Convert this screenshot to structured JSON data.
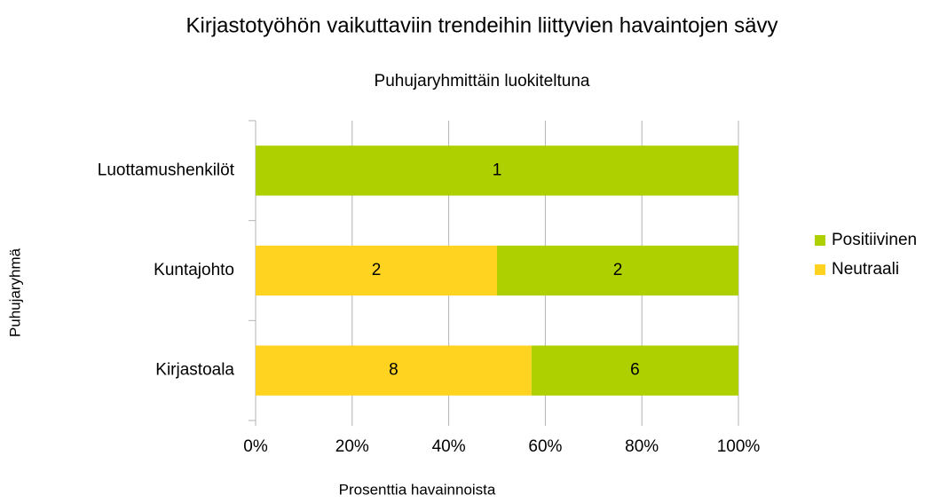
{
  "chart_data": {
    "type": "bar",
    "orientation": "horizontal",
    "stacking": "percent",
    "title": "Kirjastotyöhön vaikuttaviin trendeihin liittyvien havaintojen sävy",
    "subtitle": "Puhujaryhmittäin luokiteltuna",
    "x_label": "Prosenttia havainnoista",
    "y_label": "Puhujaryhmä",
    "categories": [
      "Kirjastoala",
      "Kuntajohto",
      "Luottamushenkilöt"
    ],
    "series": [
      {
        "name": "Neutraali",
        "color": "#ffd320",
        "values": [
          8,
          2,
          0
        ]
      },
      {
        "name": "Positiivinen",
        "color": "#aecf00",
        "values": [
          6,
          2,
          1
        ]
      }
    ],
    "xlim": [
      0,
      100
    ],
    "xticks": [
      {
        "value": 0,
        "label": "0%"
      },
      {
        "value": 20,
        "label": "20%"
      },
      {
        "value": 40,
        "label": "40%"
      },
      {
        "value": 60,
        "label": "60%"
      },
      {
        "value": 80,
        "label": "80%"
      },
      {
        "value": 100,
        "label": "100%"
      }
    ],
    "grid": true,
    "legend": "right"
  }
}
